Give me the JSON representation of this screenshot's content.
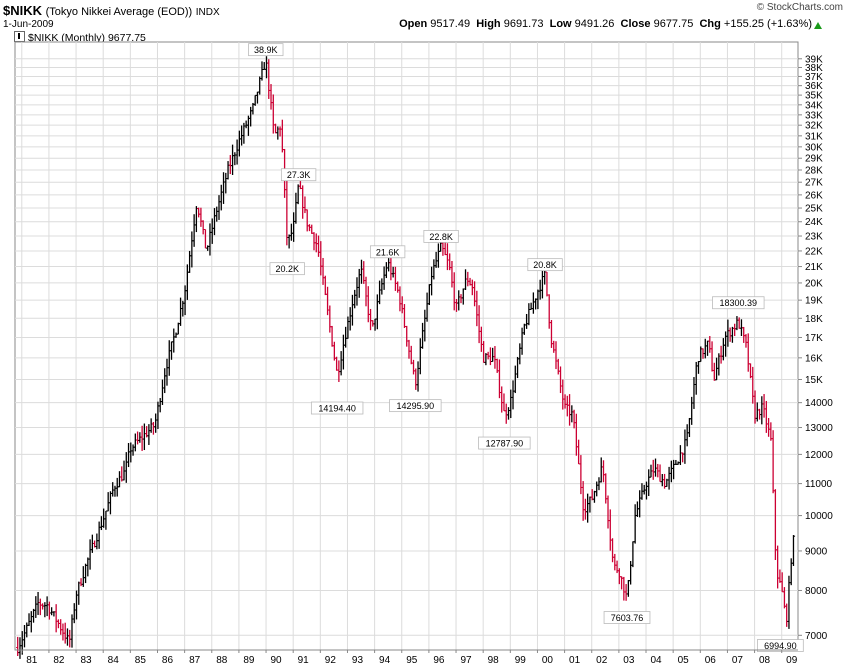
{
  "header": {
    "symbol": "$NIKK",
    "name": "(Tokyo Nikkei Average (EOD))",
    "exchange": "INDX",
    "date": "1-Jun-2009",
    "brand": "© StockCharts.com",
    "open_label": "Open",
    "open": "9517.49",
    "high_label": "High",
    "high": "9691.73",
    "low_label": "Low",
    "low": "9491.26",
    "close_label": "Close",
    "close": "9677.75",
    "chg_label": "Chg",
    "chg": "+155.25 (+1.63%)",
    "legend": "$NIKK (Monthly) 9677.75",
    "up_color": "#000000",
    "down_color": "#cc0033"
  },
  "chart_data": {
    "type": "line",
    "scale": "log",
    "period": "monthly",
    "ylim": [
      6700,
      41000
    ],
    "xlim": [
      1980.75,
      2009.6
    ],
    "grid": true,
    "x_tick_labels": [
      "81",
      "82",
      "83",
      "84",
      "85",
      "86",
      "87",
      "88",
      "89",
      "90",
      "91",
      "92",
      "93",
      "94",
      "95",
      "96",
      "97",
      "98",
      "99",
      "00",
      "01",
      "02",
      "03",
      "04",
      "05",
      "06",
      "07",
      "08",
      "09"
    ],
    "x_tick_values": [
      1981,
      1982,
      1983,
      1984,
      1985,
      1986,
      1987,
      1988,
      1989,
      1990,
      1991,
      1992,
      1993,
      1994,
      1995,
      1996,
      1997,
      1998,
      1999,
      2000,
      2001,
      2002,
      2003,
      2004,
      2005,
      2006,
      2007,
      2008,
      2009
    ],
    "y_ticks": [
      {
        "value": 7000,
        "label": "7000"
      },
      {
        "value": 8000,
        "label": "8000"
      },
      {
        "value": 9000,
        "label": "9000"
      },
      {
        "value": 10000,
        "label": "10000"
      },
      {
        "value": 11000,
        "label": "11000"
      },
      {
        "value": 12000,
        "label": "12000"
      },
      {
        "value": 13000,
        "label": "13000"
      },
      {
        "value": 14000,
        "label": "14000"
      },
      {
        "value": 15000,
        "label": "15K"
      },
      {
        "value": 16000,
        "label": "16K"
      },
      {
        "value": 17000,
        "label": "17K"
      },
      {
        "value": 18000,
        "label": "18K"
      },
      {
        "value": 19000,
        "label": "19K"
      },
      {
        "value": 20000,
        "label": "20K"
      },
      {
        "value": 21000,
        "label": "21K"
      },
      {
        "value": 22000,
        "label": "22K"
      },
      {
        "value": 23000,
        "label": "23K"
      },
      {
        "value": 24000,
        "label": "24K"
      },
      {
        "value": 25000,
        "label": "25K"
      },
      {
        "value": 26000,
        "label": "26K"
      },
      {
        "value": 27000,
        "label": "27K"
      },
      {
        "value": 28000,
        "label": "28K"
      },
      {
        "value": 29000,
        "label": "29K"
      },
      {
        "value": 30000,
        "label": "30K"
      },
      {
        "value": 31000,
        "label": "31K"
      },
      {
        "value": 32000,
        "label": "32K"
      },
      {
        "value": 33000,
        "label": "33K"
      },
      {
        "value": 34000,
        "label": "34K"
      },
      {
        "value": 35000,
        "label": "35K"
      },
      {
        "value": 36000,
        "label": "36K"
      },
      {
        "value": 37000,
        "label": "37K"
      },
      {
        "value": 38000,
        "label": "38K"
      },
      {
        "value": 39000,
        "label": "39K"
      }
    ],
    "series": [
      {
        "anchors": [
          [
            1980.85,
            6750
          ],
          [
            1981.15,
            7100
          ],
          [
            1981.6,
            7700
          ],
          [
            1981.95,
            7650
          ],
          [
            1982.3,
            7300
          ],
          [
            1982.75,
            6850
          ],
          [
            1983.0,
            7900
          ],
          [
            1983.5,
            8900
          ],
          [
            1984.0,
            9900
          ],
          [
            1984.4,
            10900
          ],
          [
            1984.8,
            11400
          ],
          [
            1985.0,
            12200
          ],
          [
            1985.5,
            12700
          ],
          [
            1985.9,
            13100
          ],
          [
            1986.3,
            15500
          ],
          [
            1986.7,
            17500
          ],
          [
            1987.0,
            19500
          ],
          [
            1987.45,
            25500
          ],
          [
            1987.8,
            22000
          ],
          [
            1988.2,
            25000
          ],
          [
            1988.6,
            28000
          ],
          [
            1989.0,
            30500
          ],
          [
            1989.5,
            33500
          ],
          [
            1989.99,
            38900
          ],
          [
            1990.3,
            31000
          ],
          [
            1990.55,
            32000
          ],
          [
            1990.78,
            22500
          ],
          [
            1991.0,
            23500
          ],
          [
            1991.2,
            26800
          ],
          [
            1991.5,
            24000
          ],
          [
            1991.9,
            22300
          ],
          [
            1992.3,
            18000
          ],
          [
            1992.62,
            15200
          ],
          [
            1992.9,
            17000
          ],
          [
            1993.2,
            19000
          ],
          [
            1993.5,
            20800
          ],
          [
            1993.9,
            17300
          ],
          [
            1994.2,
            19500
          ],
          [
            1994.48,
            21300
          ],
          [
            1994.9,
            19300
          ],
          [
            1995.25,
            16500
          ],
          [
            1995.5,
            14800
          ],
          [
            1995.75,
            17000
          ],
          [
            1996.1,
            20500
          ],
          [
            1996.45,
            22300
          ],
          [
            1996.75,
            21000
          ],
          [
            1997.0,
            18500
          ],
          [
            1997.4,
            20300
          ],
          [
            1997.6,
            19800
          ],
          [
            1998.0,
            16000
          ],
          [
            1998.4,
            16000
          ],
          [
            1998.78,
            13500
          ],
          [
            1999.0,
            14000
          ],
          [
            1999.5,
            17500
          ],
          [
            2000.0,
            19500
          ],
          [
            2000.28,
            20500
          ],
          [
            2000.5,
            17000
          ],
          [
            2001.0,
            13800
          ],
          [
            2001.3,
            13500
          ],
          [
            2001.7,
            10200
          ],
          [
            2002.0,
            10500
          ],
          [
            2002.4,
            11600
          ],
          [
            2002.8,
            8600
          ],
          [
            2003.0,
            8500
          ],
          [
            2003.3,
            7800
          ],
          [
            2003.6,
            10000
          ],
          [
            2004.0,
            11000
          ],
          [
            2004.3,
            11500
          ],
          [
            2004.7,
            11000
          ],
          [
            2005.0,
            11500
          ],
          [
            2005.5,
            12500
          ],
          [
            2005.9,
            16000
          ],
          [
            2006.3,
            16700
          ],
          [
            2006.5,
            15000
          ],
          [
            2006.9,
            17000
          ],
          [
            2007.4,
            17800
          ],
          [
            2007.7,
            16500
          ],
          [
            2008.0,
            13500
          ],
          [
            2008.3,
            13800
          ],
          [
            2008.6,
            12500
          ],
          [
            2008.8,
            8500
          ],
          [
            2009.0,
            8000
          ],
          [
            2009.17,
            7300
          ],
          [
            2009.35,
            8800
          ],
          [
            2009.5,
            9677.75
          ]
        ]
      }
    ],
    "annotations": [
      {
        "x": 1989.99,
        "y": 38900,
        "text": "38.9K",
        "pos": "above"
      },
      {
        "x": 1991.2,
        "y": 26800,
        "text": "27.3K",
        "pos": "above"
      },
      {
        "x": 1990.78,
        "y": 21500,
        "text": "20.2K",
        "pos": "below"
      },
      {
        "x": 1994.48,
        "y": 21300,
        "text": "21.6K",
        "pos": "above"
      },
      {
        "x": 1996.45,
        "y": 22300,
        "text": "22.8K",
        "pos": "above"
      },
      {
        "x": 2000.28,
        "y": 20500,
        "text": "20.8K",
        "pos": "above"
      },
      {
        "x": 1992.62,
        "y": 14194.4,
        "text": "14194.40",
        "pos": "below"
      },
      {
        "x": 1995.5,
        "y": 14295.9,
        "text": "14295.90",
        "pos": "below"
      },
      {
        "x": 1998.78,
        "y": 12787.9,
        "text": "12787.90",
        "pos": "below"
      },
      {
        "x": 2003.3,
        "y": 7603.76,
        "text": "7603.76",
        "pos": "below"
      },
      {
        "x": 2007.4,
        "y": 18300.39,
        "text": "18300.39",
        "pos": "above"
      },
      {
        "x": 2008.95,
        "y": 6994.9,
        "text": "6994.90",
        "pos": "below"
      }
    ]
  }
}
